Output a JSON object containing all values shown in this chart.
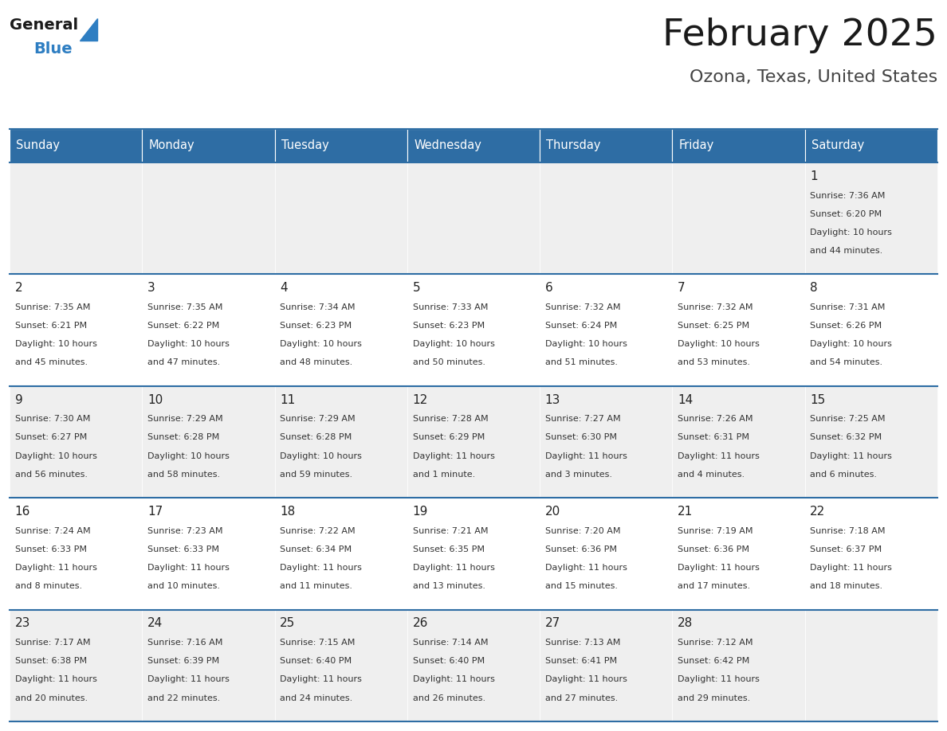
{
  "title": "February 2025",
  "subtitle": "Ozona, Texas, United States",
  "days_of_week": [
    "Sunday",
    "Monday",
    "Tuesday",
    "Wednesday",
    "Thursday",
    "Friday",
    "Saturday"
  ],
  "header_bg": "#2E6DA4",
  "header_text": "#FFFFFF",
  "cell_bg_odd": "#EFEFEF",
  "cell_bg_even": "#FFFFFF",
  "cell_text": "#333333",
  "day_num_color": "#222222",
  "border_color": "#2E6DA4",
  "title_color": "#1a1a1a",
  "subtitle_color": "#444444",
  "logo_general_color": "#1a1a1a",
  "logo_blue_color": "#2E7EC2",
  "weeks": [
    [
      null,
      null,
      null,
      null,
      null,
      null,
      {
        "day": 1,
        "sunrise": "7:36 AM",
        "sunset": "6:20 PM",
        "daylight": "10 hours and 44 minutes."
      }
    ],
    [
      {
        "day": 2,
        "sunrise": "7:35 AM",
        "sunset": "6:21 PM",
        "daylight": "10 hours and 45 minutes."
      },
      {
        "day": 3,
        "sunrise": "7:35 AM",
        "sunset": "6:22 PM",
        "daylight": "10 hours and 47 minutes."
      },
      {
        "day": 4,
        "sunrise": "7:34 AM",
        "sunset": "6:23 PM",
        "daylight": "10 hours and 48 minutes."
      },
      {
        "day": 5,
        "sunrise": "7:33 AM",
        "sunset": "6:23 PM",
        "daylight": "10 hours and 50 minutes."
      },
      {
        "day": 6,
        "sunrise": "7:32 AM",
        "sunset": "6:24 PM",
        "daylight": "10 hours and 51 minutes."
      },
      {
        "day": 7,
        "sunrise": "7:32 AM",
        "sunset": "6:25 PM",
        "daylight": "10 hours and 53 minutes."
      },
      {
        "day": 8,
        "sunrise": "7:31 AM",
        "sunset": "6:26 PM",
        "daylight": "10 hours and 54 minutes."
      }
    ],
    [
      {
        "day": 9,
        "sunrise": "7:30 AM",
        "sunset": "6:27 PM",
        "daylight": "10 hours and 56 minutes."
      },
      {
        "day": 10,
        "sunrise": "7:29 AM",
        "sunset": "6:28 PM",
        "daylight": "10 hours and 58 minutes."
      },
      {
        "day": 11,
        "sunrise": "7:29 AM",
        "sunset": "6:28 PM",
        "daylight": "10 hours and 59 minutes."
      },
      {
        "day": 12,
        "sunrise": "7:28 AM",
        "sunset": "6:29 PM",
        "daylight": "11 hours and 1 minute."
      },
      {
        "day": 13,
        "sunrise": "7:27 AM",
        "sunset": "6:30 PM",
        "daylight": "11 hours and 3 minutes."
      },
      {
        "day": 14,
        "sunrise": "7:26 AM",
        "sunset": "6:31 PM",
        "daylight": "11 hours and 4 minutes."
      },
      {
        "day": 15,
        "sunrise": "7:25 AM",
        "sunset": "6:32 PM",
        "daylight": "11 hours and 6 minutes."
      }
    ],
    [
      {
        "day": 16,
        "sunrise": "7:24 AM",
        "sunset": "6:33 PM",
        "daylight": "11 hours and 8 minutes."
      },
      {
        "day": 17,
        "sunrise": "7:23 AM",
        "sunset": "6:33 PM",
        "daylight": "11 hours and 10 minutes."
      },
      {
        "day": 18,
        "sunrise": "7:22 AM",
        "sunset": "6:34 PM",
        "daylight": "11 hours and 11 minutes."
      },
      {
        "day": 19,
        "sunrise": "7:21 AM",
        "sunset": "6:35 PM",
        "daylight": "11 hours and 13 minutes."
      },
      {
        "day": 20,
        "sunrise": "7:20 AM",
        "sunset": "6:36 PM",
        "daylight": "11 hours and 15 minutes."
      },
      {
        "day": 21,
        "sunrise": "7:19 AM",
        "sunset": "6:36 PM",
        "daylight": "11 hours and 17 minutes."
      },
      {
        "day": 22,
        "sunrise": "7:18 AM",
        "sunset": "6:37 PM",
        "daylight": "11 hours and 18 minutes."
      }
    ],
    [
      {
        "day": 23,
        "sunrise": "7:17 AM",
        "sunset": "6:38 PM",
        "daylight": "11 hours and 20 minutes."
      },
      {
        "day": 24,
        "sunrise": "7:16 AM",
        "sunset": "6:39 PM",
        "daylight": "11 hours and 22 minutes."
      },
      {
        "day": 25,
        "sunrise": "7:15 AM",
        "sunset": "6:40 PM",
        "daylight": "11 hours and 24 minutes."
      },
      {
        "day": 26,
        "sunrise": "7:14 AM",
        "sunset": "6:40 PM",
        "daylight": "11 hours and 26 minutes."
      },
      {
        "day": 27,
        "sunrise": "7:13 AM",
        "sunset": "6:41 PM",
        "daylight": "11 hours and 27 minutes."
      },
      {
        "day": 28,
        "sunrise": "7:12 AM",
        "sunset": "6:42 PM",
        "daylight": "11 hours and 29 minutes."
      },
      null
    ]
  ]
}
